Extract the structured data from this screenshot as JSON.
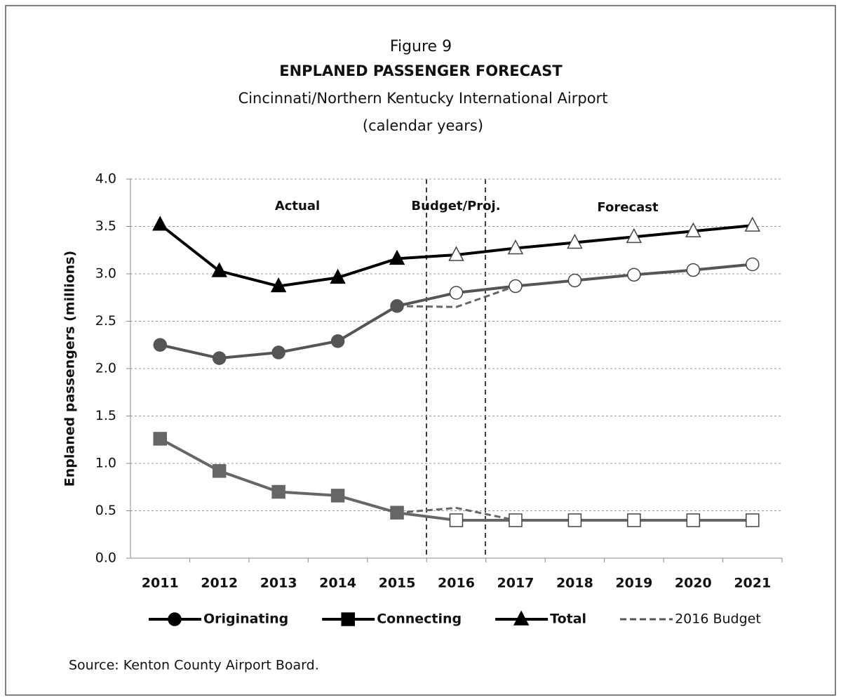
{
  "chart_data": {
    "type": "line",
    "title": "Figure 9",
    "subtitle": "ENPLANED PASSENGER FORECAST",
    "subtitle2": "Cincinnati/Northern Kentucky International Airport",
    "subtitle3": "(calendar years)",
    "y_label": "Enplaned passengers (millions)",
    "annotations": [
      "Actual",
      "Budget/Proj.",
      "Forecast"
    ],
    "source": "Source:  Kenton County Airport Board.",
    "categories": [
      "2011",
      "2012",
      "2013",
      "2014",
      "2015",
      "2016",
      "2017",
      "2018",
      "2019",
      "2020",
      "2021"
    ],
    "filled_markers": [
      true,
      true,
      true,
      true,
      true,
      false,
      false,
      false,
      false,
      false,
      false
    ],
    "series": [
      {
        "name": "Originating",
        "color": "#555555",
        "marker": "circle",
        "values": [
          2.25,
          2.11,
          2.17,
          2.29,
          2.66,
          2.8,
          2.87,
          2.93,
          2.99,
          3.04,
          3.1
        ]
      },
      {
        "name": "Connecting",
        "color": "#666666",
        "marker": "square",
        "values": [
          1.26,
          0.92,
          0.7,
          0.66,
          0.48,
          0.4,
          0.4,
          0.4,
          0.4,
          0.4,
          0.4
        ]
      },
      {
        "name": "Total",
        "color": "#000000",
        "marker": "triangle",
        "values": [
          3.52,
          3.03,
          2.87,
          2.96,
          3.16,
          3.2,
          3.27,
          3.33,
          3.39,
          3.45,
          3.51
        ]
      },
      {
        "name": "2016 Budget",
        "color": "#666666",
        "dashed": true,
        "values": [
          null,
          null,
          null,
          null,
          2.66,
          2.65,
          2.87,
          null,
          null,
          null,
          null
        ]
      },
      {
        "color": "#666666",
        "dashed": true,
        "values": [
          null,
          null,
          null,
          null,
          0.48,
          0.53,
          0.4,
          null,
          null,
          null,
          null
        ]
      }
    ],
    "ylim": [
      0,
      4
    ],
    "yticks": [
      {
        "value": 0,
        "label": "0.0"
      },
      0.5,
      {
        "value": 1,
        "label": "1.0"
      },
      1.5,
      {
        "value": 2,
        "label": "2.0"
      },
      2.5,
      {
        "value": 3,
        "label": "3.0"
      },
      3.5,
      {
        "value": 4,
        "label": "4.0"
      }
    ],
    "grid": true,
    "legend": "bottom"
  }
}
